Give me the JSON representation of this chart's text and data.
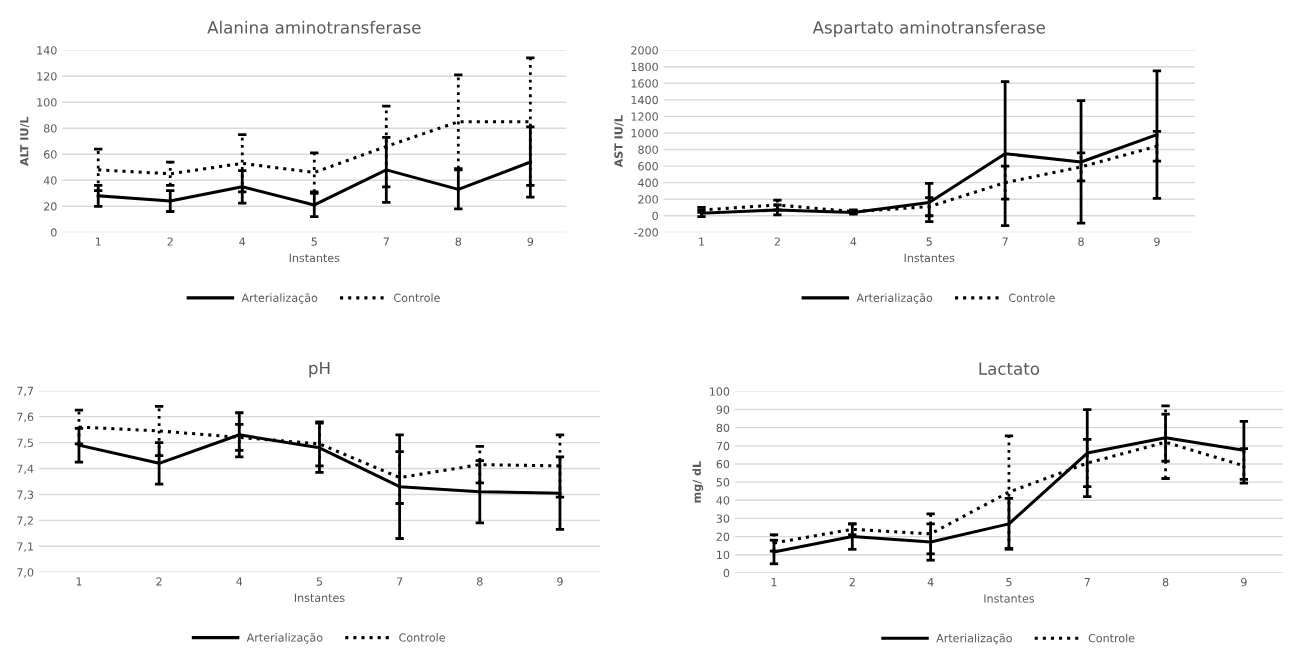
{
  "chart_data": [
    {
      "type": "line",
      "title": "Alanina aminotransferase",
      "xlabel": "Instantes",
      "ylabel": "ALT IU/L",
      "categories": [
        "1",
        "2",
        "4",
        "5",
        "7",
        "8",
        "9"
      ],
      "ylim": [
        0,
        140
      ],
      "yticks": [
        0,
        20,
        40,
        60,
        80,
        100,
        120,
        140
      ],
      "grid": "y",
      "legend": "bottom",
      "series": [
        {
          "name": "Arterialização",
          "color": "#000000",
          "line_style": "solid",
          "values": [
            28,
            24,
            35,
            21,
            48,
            33,
            54
          ],
          "errors": [
            8,
            8,
            12.5,
            9,
            25,
            15,
            27
          ]
        },
        {
          "name": "Controle",
          "color": "#000000",
          "line_style": "dotted",
          "values": [
            48,
            45,
            53,
            46,
            66,
            85,
            85
          ],
          "errors": [
            16,
            9,
            22,
            15,
            31,
            36,
            49
          ]
        }
      ]
    },
    {
      "type": "line",
      "title": "Aspartato aminotransferase",
      "xlabel": "Instantes",
      "ylabel": "AST IU/L",
      "categories": [
        "1",
        "2",
        "4",
        "5",
        "7",
        "8",
        "9"
      ],
      "ylim": [
        -200,
        2000
      ],
      "yticks": [
        -200,
        0,
        200,
        400,
        600,
        800,
        1000,
        1200,
        1400,
        1600,
        1800,
        2000
      ],
      "grid": "y",
      "legend": "bottom",
      "series": [
        {
          "name": "Arterialização",
          "color": "#000000",
          "line_style": "solid",
          "values": [
            30,
            70,
            40,
            160,
            750,
            650,
            980
          ],
          "errors": [
            40,
            60,
            20,
            230,
            870,
            740,
            770
          ]
        },
        {
          "name": "Controle",
          "color": "#000000",
          "line_style": "dotted",
          "values": [
            70,
            130,
            50,
            110,
            400,
            590,
            840
          ],
          "errors": [
            30,
            60,
            20,
            110,
            200,
            170,
            180
          ]
        }
      ]
    },
    {
      "type": "line",
      "title": "pH",
      "xlabel": "Instantes",
      "categories": [
        "1",
        "2",
        "4",
        "5",
        "7",
        "8",
        "9"
      ],
      "ylim": [
        7.0,
        7.7
      ],
      "yticks": [
        {
          "value": 7.0,
          "label": "7,0"
        },
        {
          "value": 7.1,
          "label": "7,1"
        },
        {
          "value": 7.2,
          "label": "7,2"
        },
        {
          "value": 7.3,
          "label": "7,3"
        },
        {
          "value": 7.4,
          "label": "7,4"
        },
        {
          "value": 7.5,
          "label": "7,5"
        },
        {
          "value": 7.6,
          "label": "7,6"
        },
        {
          "value": 7.7,
          "label": "7,7"
        }
      ],
      "grid": "y",
      "legend": "bottom",
      "series": [
        {
          "name": "Arterialização",
          "color": "#000000",
          "line_style": "solid",
          "values": [
            7.49,
            7.42,
            7.53,
            7.48,
            7.33,
            7.31,
            7.305
          ],
          "errors": [
            0.065,
            0.08,
            0.085,
            0.095,
            0.2,
            0.12,
            0.14
          ]
        },
        {
          "name": "Controle",
          "color": "#000000",
          "line_style": "dotted",
          "values": [
            7.56,
            7.545,
            7.52,
            7.495,
            7.365,
            7.415,
            7.41
          ],
          "errors": [
            0.065,
            0.095,
            0.05,
            0.085,
            0.1,
            0.07,
            0.12
          ]
        }
      ]
    },
    {
      "type": "line",
      "title": "Lactato",
      "xlabel": "Instantes",
      "ylabel": "mg/ dL",
      "categories": [
        "1",
        "2",
        "4",
        "5",
        "7",
        "8",
        "9"
      ],
      "ylim": [
        0,
        100
      ],
      "yticks": [
        0,
        10,
        20,
        30,
        40,
        50,
        60,
        70,
        80,
        90,
        100
      ],
      "grid": "y",
      "legend": "bottom",
      "series": [
        {
          "name": "Arterialização",
          "color": "#000000",
          "line_style": "solid",
          "values": [
            11.5,
            20,
            17,
            27,
            66,
            74.5,
            67.5
          ],
          "errors": [
            6.5,
            7,
            10,
            14,
            24,
            13,
            16
          ]
        },
        {
          "name": "Controle",
          "color": "#000000",
          "line_style": "dotted",
          "values": [
            16.5,
            24,
            21.5,
            44.5,
            60.5,
            72,
            59
          ],
          "errors": [
            4.5,
            3,
            11,
            31,
            13,
            20,
            9.5
          ]
        }
      ]
    }
  ]
}
